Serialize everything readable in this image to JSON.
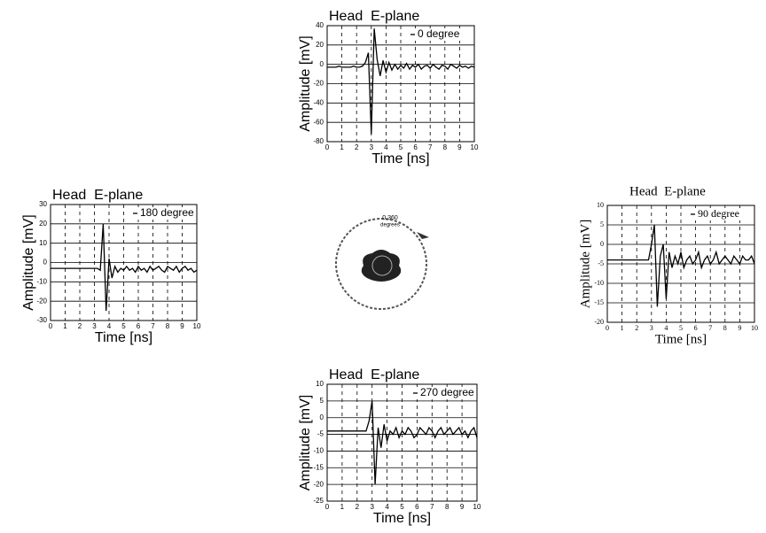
{
  "chart_data": [
    {
      "type": "line",
      "title": "Head  E-plane",
      "x_label": "Time [ns]",
      "y_label": "Amplitude [mV]",
      "x": [
        0,
        0.2,
        0.4,
        0.6,
        0.8,
        1,
        1.2,
        1.4,
        1.6,
        1.8,
        2,
        2.2,
        2.4,
        2.6,
        2.8,
        3,
        3.2,
        3.4,
        3.6,
        3.8,
        4,
        4.2,
        4.4,
        4.6,
        4.8,
        5,
        5.2,
        5.4,
        5.6,
        5.8,
        6,
        6.2,
        6.4,
        6.6,
        6.8,
        7,
        7.2,
        7.4,
        7.6,
        7.8,
        8,
        8.2,
        8.4,
        8.6,
        8.8,
        9,
        9.2,
        9.4,
        9.6,
        9.8,
        10
      ],
      "series": [
        {
          "name": "0 degree",
          "color": "#000000",
          "values": [
            -3,
            -3,
            -3,
            -3,
            -2,
            -3,
            -3,
            -3,
            -3,
            -2,
            -3,
            -3,
            -2,
            2,
            12,
            -72,
            37,
            5,
            -12,
            4,
            -8,
            2,
            -6,
            0,
            -5,
            -1,
            -4,
            1,
            -5,
            -1,
            -3,
            0,
            -5,
            -2,
            -1,
            -4,
            0,
            -3,
            -5,
            -1,
            -2,
            -5,
            0,
            -2,
            -4,
            -1,
            -3,
            -2,
            -4,
            -2,
            -3
          ]
        }
      ],
      "xlim": [
        0,
        10
      ],
      "xticks": [
        0,
        1,
        2,
        3,
        4,
        5,
        6,
        7,
        8,
        9,
        10
      ],
      "ylim": [
        -80,
        40
      ],
      "yticks": [
        40,
        20,
        0,
        -20,
        -40,
        -60,
        -80
      ],
      "grid": true,
      "legend": "top-right"
    },
    {
      "type": "line",
      "title": "Head  E-plane",
      "x_label": "Time [ns]",
      "y_label": "Amplitude [mV]",
      "x": [
        0,
        0.2,
        0.4,
        0.6,
        0.8,
        1,
        1.2,
        1.4,
        1.6,
        1.8,
        2,
        2.2,
        2.4,
        2.6,
        2.8,
        3,
        3.2,
        3.4,
        3.6,
        3.8,
        4,
        4.2,
        4.4,
        4.6,
        4.8,
        5,
        5.2,
        5.4,
        5.6,
        5.8,
        6,
        6.2,
        6.4,
        6.6,
        6.8,
        7,
        7.2,
        7.4,
        7.6,
        7.8,
        8,
        8.2,
        8.4,
        8.6,
        8.8,
        9,
        9.2,
        9.4,
        9.6,
        9.8,
        10
      ],
      "series": [
        {
          "name": "180 degree",
          "color": "#000000",
          "values": [
            -3,
            -3,
            -3,
            -3,
            -3,
            -3,
            -3,
            -3,
            -3,
            -3,
            -3,
            -3,
            -3,
            -3,
            -3,
            -3,
            -3,
            -4,
            20,
            -25,
            2,
            -8,
            -2,
            -5,
            -3,
            -4,
            -2,
            -4,
            -3,
            -5,
            -2,
            -4,
            -3,
            -5,
            -2,
            -4,
            -3,
            -2,
            -4,
            -5,
            -2,
            -3,
            -4,
            -2,
            -5,
            -3,
            -2,
            -4,
            -3,
            -5,
            -4
          ]
        }
      ],
      "xlim": [
        0,
        10
      ],
      "xticks": [
        0,
        1,
        2,
        3,
        4,
        5,
        6,
        7,
        8,
        9,
        10
      ],
      "ylim": [
        -30,
        30
      ],
      "yticks": [
        30,
        20,
        10,
        0,
        -10,
        -20,
        -30
      ],
      "grid": true,
      "legend": "top-right"
    },
    {
      "type": "line",
      "title": "Head  E-plane",
      "x_label": "Time [ns]",
      "y_label": "Amplitude [mV]",
      "x": [
        0,
        0.2,
        0.4,
        0.6,
        0.8,
        1,
        1.2,
        1.4,
        1.6,
        1.8,
        2,
        2.2,
        2.4,
        2.6,
        2.8,
        3,
        3.2,
        3.4,
        3.6,
        3.8,
        4,
        4.2,
        4.4,
        4.6,
        4.8,
        5,
        5.2,
        5.4,
        5.6,
        5.8,
        6,
        6.2,
        6.4,
        6.6,
        6.8,
        7,
        7.2,
        7.4,
        7.6,
        7.8,
        8,
        8.2,
        8.4,
        8.6,
        8.8,
        9,
        9.2,
        9.4,
        9.6,
        9.8,
        10
      ],
      "series": [
        {
          "name": "90 degree",
          "color": "#000000",
          "values": [
            -4,
            -4,
            -4,
            -4,
            -4,
            -4,
            -4,
            -4,
            -4,
            -4,
            -4,
            -4,
            -4,
            -4,
            -4,
            0,
            5,
            -16,
            -3,
            0,
            -14,
            -2,
            -6,
            -3,
            -5,
            -2,
            -6,
            -4,
            -3,
            -5,
            -4,
            -2,
            -6,
            -4,
            -3,
            -5,
            -4,
            -2,
            -5,
            -4,
            -3,
            -4,
            -5,
            -3,
            -4,
            -5,
            -3,
            -4,
            -4,
            -3,
            -5
          ]
        }
      ],
      "xlim": [
        0,
        10
      ],
      "xticks": [
        0,
        1,
        2,
        3,
        4,
        5,
        6,
        7,
        8,
        9,
        10
      ],
      "ylim": [
        -20,
        10
      ],
      "yticks": [
        10,
        5,
        0,
        -5,
        -10,
        -15,
        -20
      ],
      "grid": true,
      "legend": "top-right"
    },
    {
      "type": "line",
      "title": "Head  E-plane",
      "x_label": "Time [ns]",
      "y_label": "Amplitude [mV]",
      "x": [
        0,
        0.2,
        0.4,
        0.6,
        0.8,
        1,
        1.2,
        1.4,
        1.6,
        1.8,
        2,
        2.2,
        2.4,
        2.6,
        2.8,
        3,
        3.2,
        3.4,
        3.6,
        3.8,
        4,
        4.2,
        4.4,
        4.6,
        4.8,
        5,
        5.2,
        5.4,
        5.6,
        5.8,
        6,
        6.2,
        6.4,
        6.6,
        6.8,
        7,
        7.2,
        7.4,
        7.6,
        7.8,
        8,
        8.2,
        8.4,
        8.6,
        8.8,
        9,
        9.2,
        9.4,
        9.6,
        9.8,
        10
      ],
      "series": [
        {
          "name": "270 degree",
          "color": "#000000",
          "values": [
            -4,
            -4,
            -4,
            -4,
            -4,
            -4,
            -4,
            -4,
            -4,
            -4,
            -4,
            -4,
            -4,
            -4,
            -1,
            5,
            -20,
            -3,
            -9,
            -2,
            -7,
            -4,
            -5,
            -3,
            -6,
            -4,
            -5,
            -3,
            -4,
            -6,
            -5,
            -3,
            -4,
            -5,
            -3,
            -4,
            -6,
            -4,
            -3,
            -5,
            -4,
            -3,
            -5,
            -4,
            -3,
            -5,
            -4,
            -6,
            -4,
            -3,
            -6
          ]
        }
      ],
      "xlim": [
        0,
        10
      ],
      "xticks": [
        0,
        1,
        2,
        3,
        4,
        5,
        6,
        7,
        8,
        9,
        10
      ],
      "ylim": [
        -25,
        10
      ],
      "yticks": [
        10,
        5,
        0,
        -5,
        -10,
        -15,
        -20,
        -25
      ],
      "grid": true,
      "legend": "top-right"
    }
  ],
  "diagram": {
    "labels": [
      "0,360",
      "degrees"
    ]
  }
}
